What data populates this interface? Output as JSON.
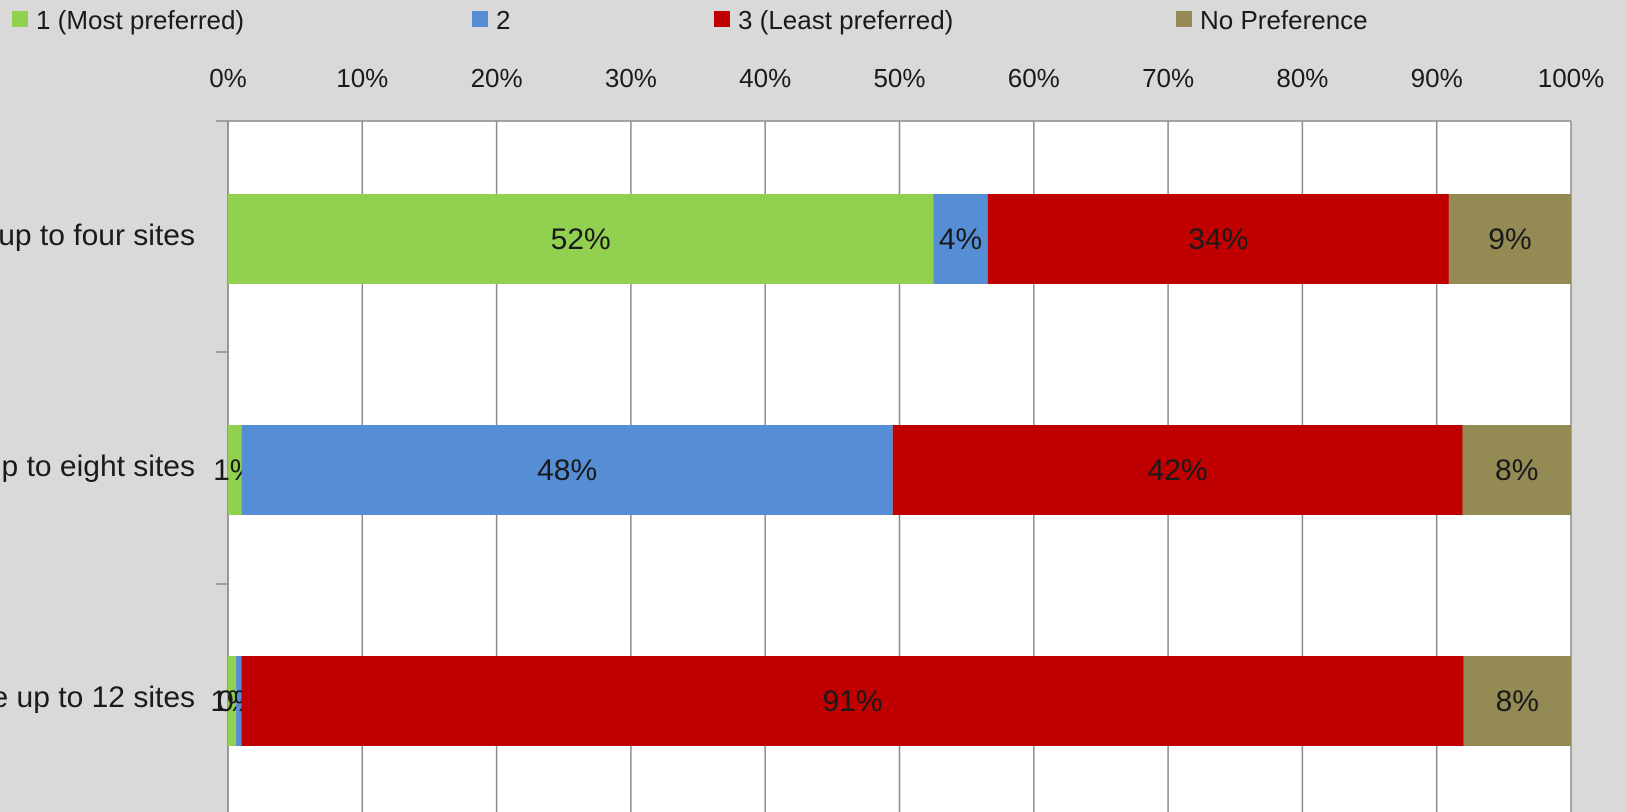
{
  "chart_data": {
    "type": "bar",
    "orientation": "horizontal",
    "stacked": true,
    "percent_stacked": true,
    "categories": [
      "up to four sites",
      "p to eight sites",
      "e up to 12 sites"
    ],
    "series": [
      {
        "name": "1 (Most preferred)",
        "color": "#92d050",
        "values": [
          52,
          1,
          0.6
        ],
        "labels": [
          "52%",
          "1%",
          "1%"
        ]
      },
      {
        "name": "2",
        "color": "#558ed5",
        "values": [
          4,
          48,
          0.4
        ],
        "labels": [
          "4%",
          "48%",
          "0%"
        ]
      },
      {
        "name": "3 (Least preferred)",
        "color": "#c00000",
        "values": [
          34,
          42,
          91
        ],
        "labels": [
          "34%",
          "42%",
          "91%"
        ]
      },
      {
        "name": "No Preference",
        "color": "#948a54",
        "values": [
          9,
          8,
          8
        ],
        "labels": [
          "9%",
          "8%",
          "8%"
        ]
      }
    ],
    "xlim": [
      0,
      100
    ],
    "x_ticks": [
      "0%",
      "10%",
      "20%",
      "30%",
      "40%",
      "50%",
      "60%",
      "70%",
      "80%",
      "90%",
      "100%"
    ],
    "x_axis_position": "top",
    "grid": true,
    "legend_position": "top",
    "plot_background": "#ffffff",
    "chart_background": "#d9d9d9"
  }
}
